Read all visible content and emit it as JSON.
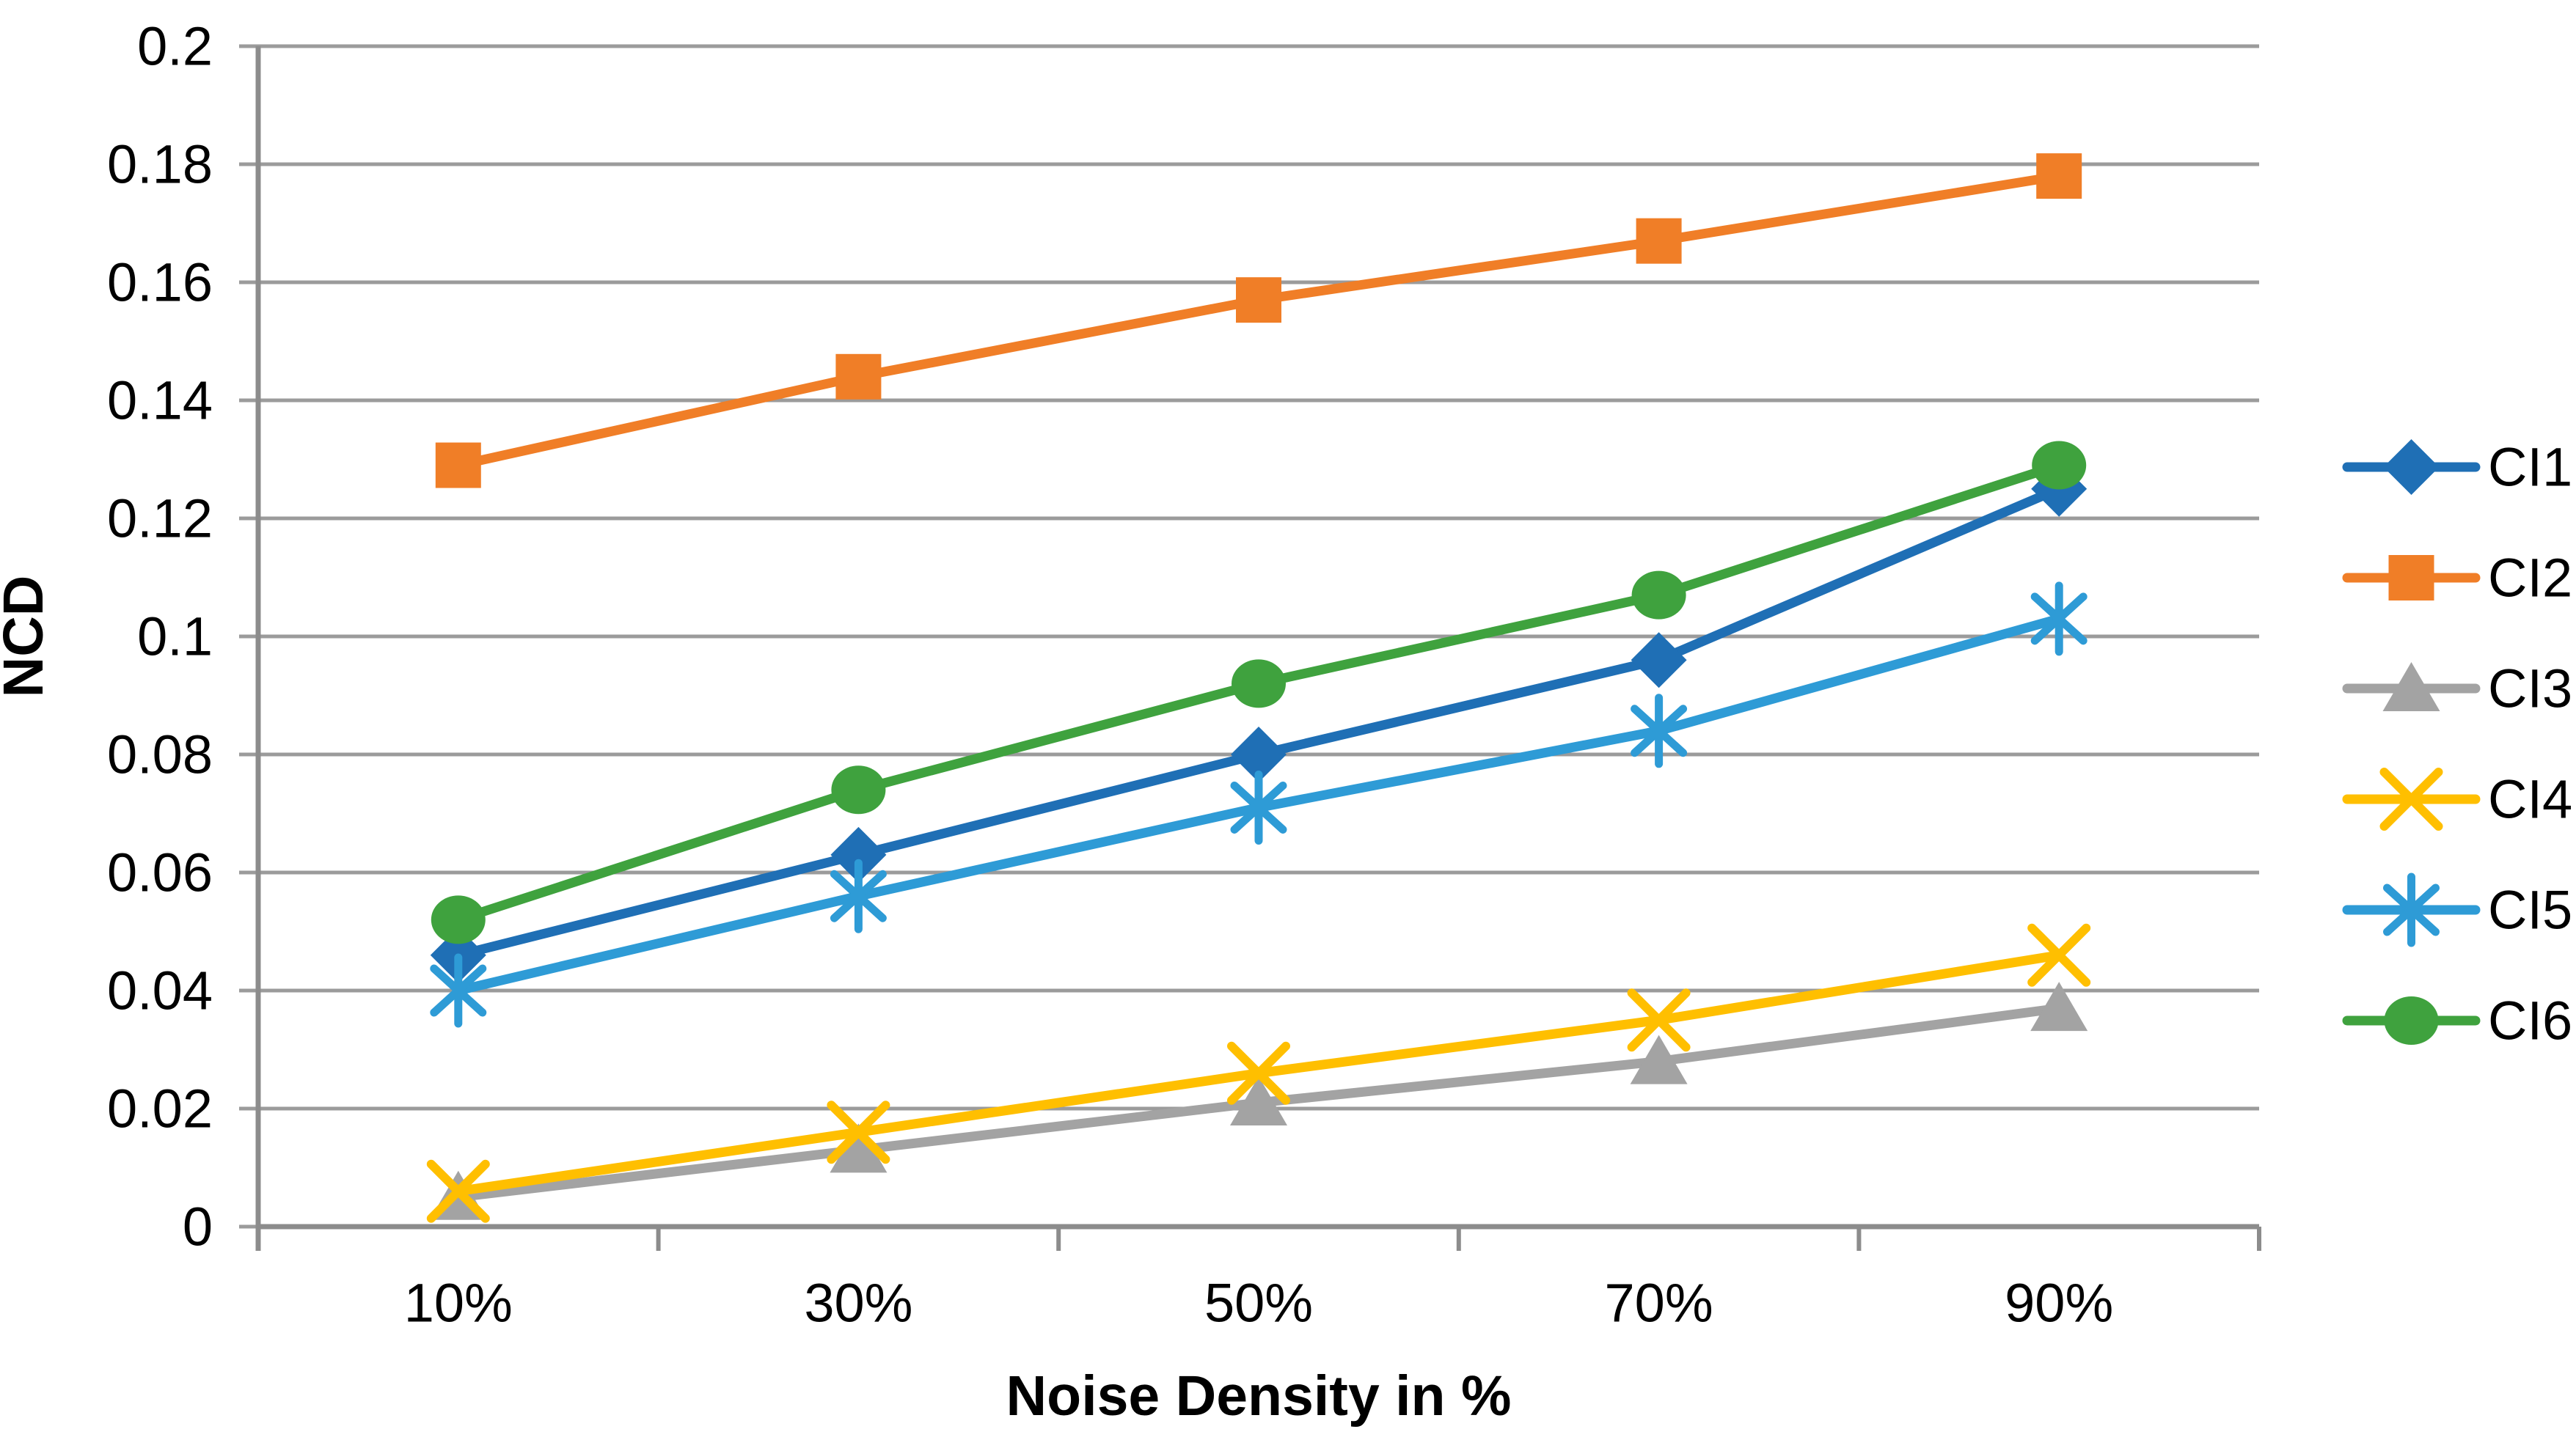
{
  "chart_data": {
    "type": "line",
    "title": "",
    "xlabel": "Noise Density in %",
    "ylabel": "NCD",
    "categories": [
      "10%",
      "30%",
      "50%",
      "70%",
      "90%"
    ],
    "ylim": [
      0,
      0.2
    ],
    "ytick_step": 0.02,
    "ytick_labels": [
      "0",
      "0.02",
      "0.04",
      "0.06",
      "0.08",
      "0.1",
      "0.12",
      "0.14",
      "0.16",
      "0.18",
      "0.2"
    ],
    "grid": "horizontal-only",
    "legend_position": "right-middle",
    "series": [
      {
        "name": "CI1",
        "marker": "diamond",
        "color": "#1F6FB5",
        "values": [
          0.046,
          0.063,
          0.08,
          0.096,
          0.125
        ]
      },
      {
        "name": "CI2",
        "marker": "square",
        "color": "#F07E27",
        "values": [
          0.129,
          0.144,
          0.157,
          0.167,
          0.178
        ]
      },
      {
        "name": "CI3",
        "marker": "triangle",
        "color": "#A3A3A3",
        "values": [
          0.005,
          0.013,
          0.021,
          0.028,
          0.037
        ]
      },
      {
        "name": "CI4",
        "marker": "x",
        "color": "#FFBF00",
        "values": [
          0.006,
          0.016,
          0.026,
          0.035,
          0.046
        ]
      },
      {
        "name": "CI5",
        "marker": "asterisk",
        "color": "#2E9BD6",
        "values": [
          0.04,
          0.056,
          0.071,
          0.084,
          0.103
        ]
      },
      {
        "name": "CI6",
        "marker": "circle",
        "color": "#3FA23E",
        "values": [
          0.052,
          0.074,
          0.092,
          0.107,
          0.129
        ]
      }
    ]
  },
  "colors": {
    "background": "#FFFFFF",
    "gridline": "#9B9B9B",
    "axis_line": "#8C8C8C",
    "text": "#000000"
  }
}
